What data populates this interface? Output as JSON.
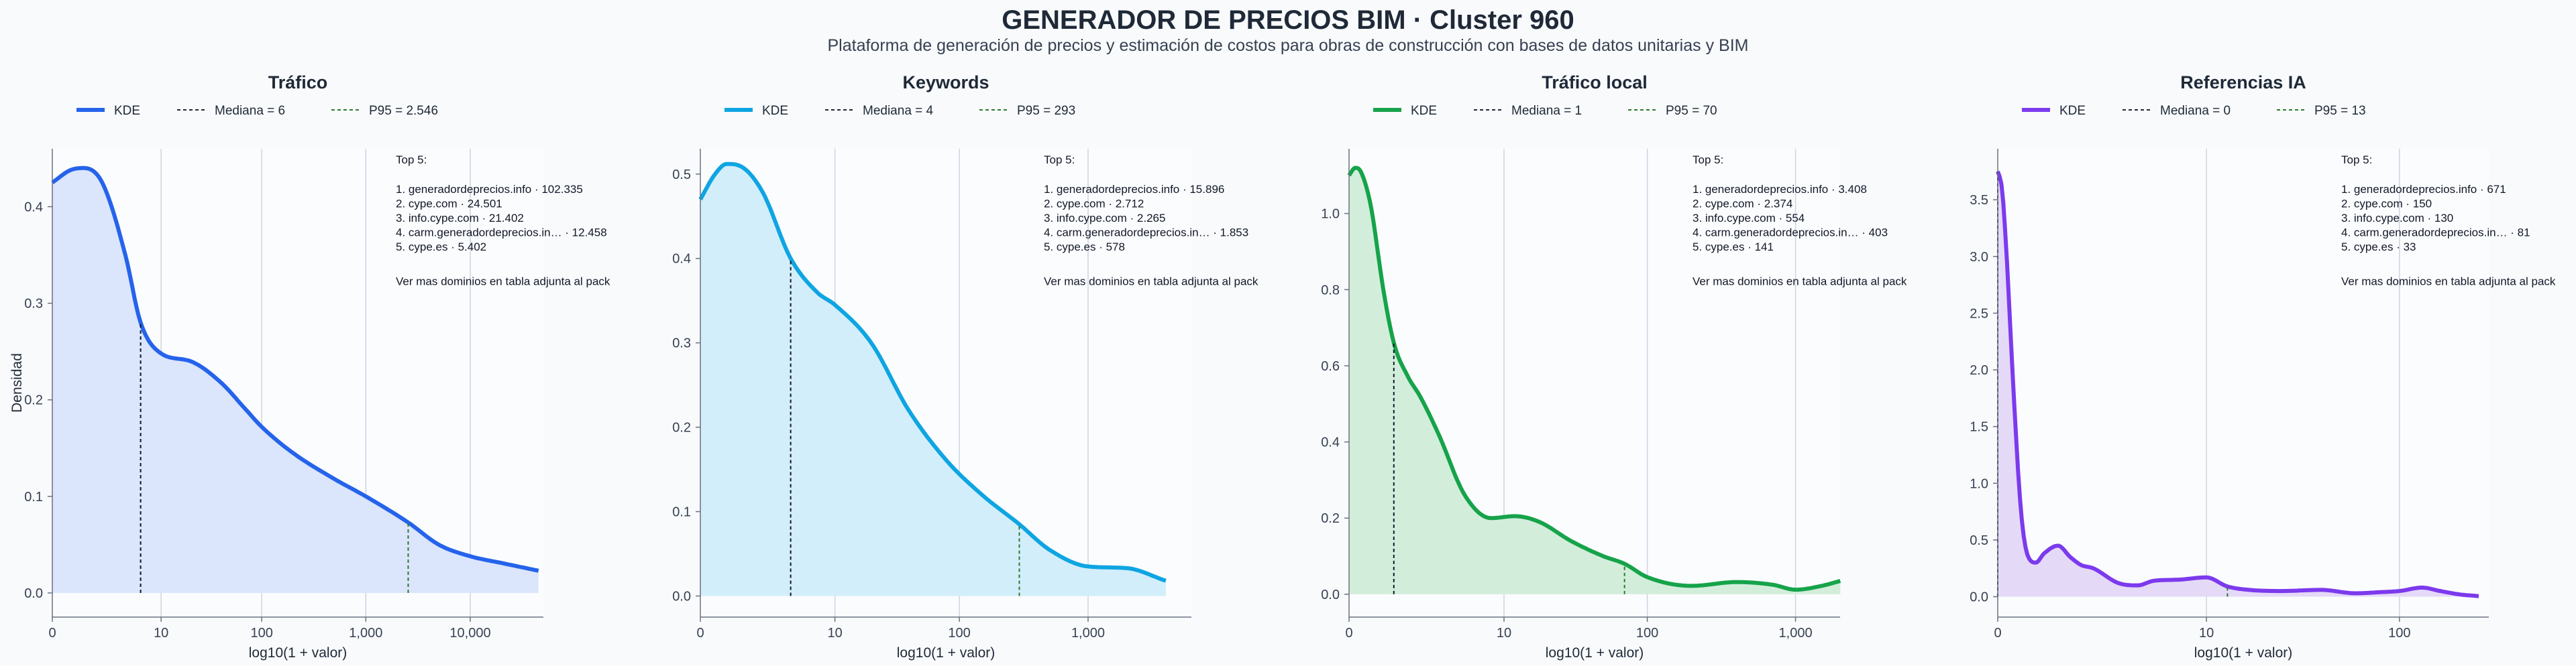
{
  "header": {
    "title": "GENERADOR DE PRECIOS BIM · Cluster 960",
    "subtitle": "Plataforma de generación de precios y estimación de costos para obras de construcción con bases de datos unitarias y BIM"
  },
  "chart_data": [
    {
      "type": "area",
      "title": "Tráfico",
      "xlabel": "log10(1 + valor)",
      "ylabel": "Densidad",
      "color": "#2563eb",
      "fill": "#dbe5fb",
      "x_scale": "log10(1+x)",
      "xlim": [
        0,
        4.7
      ],
      "ylim": [
        -0.025,
        0.46
      ],
      "x_ticks": [
        0,
        10,
        100,
        1000,
        10000
      ],
      "x_tick_labels": [
        "0",
        "10",
        "100",
        "1,000",
        "10,000"
      ],
      "y_ticks": [
        0.0,
        0.1,
        0.2,
        0.3,
        0.4
      ],
      "y_tick_labels": [
        "0.0",
        "0.1",
        "0.2",
        "0.3",
        "0.4"
      ],
      "grid": "vertical",
      "legend": {
        "placement": "top",
        "kde": "KDE",
        "median": "Mediana = 6",
        "p95": "P95 = 2.546"
      },
      "median": 6,
      "p95": 2546,
      "series": [
        {
          "name": "KDE",
          "x": [
            0,
            0.5,
            1,
            2,
            4,
            6,
            10,
            20,
            40,
            70,
            100,
            200,
            500,
            1000,
            2546,
            5000,
            10000,
            20000,
            45000
          ],
          "y": [
            0.425,
            0.438,
            0.44,
            0.425,
            0.35,
            0.28,
            0.248,
            0.24,
            0.218,
            0.19,
            0.172,
            0.145,
            0.118,
            0.1,
            0.073,
            0.05,
            0.038,
            0.031,
            0.023
          ]
        }
      ],
      "annotation": {
        "heading": "Top 5:",
        "items": [
          "1. generadordeprecios.info · 102.335",
          "2. cype.com · 24.501",
          "3. info.cype.com · 21.402",
          "4. carm.generadordeprecios.in… · 12.458",
          "5. cype.es · 5.402"
        ],
        "footer": "Ver mas dominios en tabla adjunta al pack"
      }
    },
    {
      "type": "area",
      "title": "Keywords",
      "xlabel": "log10(1 + valor)",
      "ylabel": "",
      "color": "#0ea5e2",
      "fill": "#d3eefb",
      "x_scale": "log10(1+x)",
      "xlim": [
        0,
        3.8
      ],
      "ylim": [
        -0.025,
        0.53
      ],
      "x_ticks": [
        0,
        10,
        100,
        1000
      ],
      "x_tick_labels": [
        "0",
        "10",
        "100",
        "1,000"
      ],
      "y_ticks": [
        0.0,
        0.1,
        0.2,
        0.3,
        0.4,
        0.5
      ],
      "y_tick_labels": [
        "0.0",
        "0.1",
        "0.2",
        "0.3",
        "0.4",
        "0.5"
      ],
      "grid": "vertical",
      "legend": {
        "placement": "top",
        "kde": "KDE",
        "median": "Mediana = 4",
        "p95": "P95 = 293"
      },
      "median": 4,
      "p95": 293,
      "series": [
        {
          "name": "KDE",
          "x": [
            0,
            0.3,
            0.6,
            1,
            2,
            4,
            7,
            10,
            20,
            40,
            80,
            150,
            293,
            500,
            1000,
            2000,
            4000
          ],
          "y": [
            0.47,
            0.5,
            0.512,
            0.51,
            0.48,
            0.4,
            0.36,
            0.345,
            0.3,
            0.22,
            0.16,
            0.12,
            0.085,
            0.055,
            0.035,
            0.033,
            0.018
          ]
        }
      ],
      "annotation": {
        "heading": "Top 5:",
        "items": [
          "1. generadordeprecios.info · 15.896",
          "2. cype.com · 2.712",
          "3. info.cype.com · 2.265",
          "4. carm.generadordeprecios.in… · 1.853",
          "5. cype.es · 578"
        ],
        "footer": "Ver mas dominios en tabla adjunta al pack"
      }
    },
    {
      "type": "area",
      "title": "Tráfico local",
      "xlabel": "log10(1 + valor)",
      "ylabel": "",
      "color": "#16a34a",
      "fill": "#d2eedb",
      "x_scale": "log10(1+x)",
      "xlim": [
        0,
        3.3
      ],
      "ylim": [
        -0.06,
        1.17
      ],
      "x_ticks": [
        0,
        10,
        100,
        1000
      ],
      "x_tick_labels": [
        "0",
        "10",
        "100",
        "1,000"
      ],
      "y_ticks": [
        0.0,
        0.2,
        0.4,
        0.6,
        0.8,
        1.0
      ],
      "y_tick_labels": [
        "0.0",
        "0.2",
        "0.4",
        "0.6",
        "0.8",
        "1.0"
      ],
      "grid": "vertical",
      "legend": {
        "placement": "top",
        "kde": "KDE",
        "median": "Mediana = 1",
        "p95": "P95 = 70"
      },
      "median": 1,
      "p95": 70,
      "series": [
        {
          "name": "KDE",
          "x": [
            0,
            0.1,
            0.2,
            0.4,
            0.7,
            1,
            1.5,
            2,
            3,
            5,
            8,
            12,
            18,
            30,
            50,
            70,
            100,
            200,
            400,
            700,
            1000,
            1500,
            2000
          ],
          "y": [
            1.1,
            1.12,
            1.11,
            1.02,
            0.8,
            0.66,
            0.57,
            0.52,
            0.42,
            0.26,
            0.2,
            0.205,
            0.19,
            0.14,
            0.1,
            0.08,
            0.045,
            0.022,
            0.032,
            0.025,
            0.012,
            0.022,
            0.035
          ]
        }
      ],
      "annotation": {
        "heading": "Top 5:",
        "items": [
          "1. generadordeprecios.info · 3.408",
          "2. cype.com · 2.374",
          "3. info.cype.com · 554",
          "4. carm.generadordeprecios.in… · 403",
          "5. cype.es · 141"
        ],
        "footer": "Ver mas dominios en tabla adjunta al pack"
      }
    },
    {
      "type": "area",
      "title": "Referencias IA",
      "xlabel": "log10(1 + valor)",
      "ylabel": "",
      "color": "#7c3aed",
      "fill": "#e5d9f8",
      "x_scale": "log10(1+x)",
      "xlim": [
        0,
        2.45
      ],
      "ylim": [
        -0.18,
        3.95
      ],
      "x_ticks": [
        0,
        10,
        100
      ],
      "x_tick_labels": [
        "0",
        "10",
        "100"
      ],
      "y_ticks": [
        0.0,
        0.5,
        1.0,
        1.5,
        2.0,
        2.5,
        3.0,
        3.5
      ],
      "y_tick_labels": [
        "0.0",
        "0.5",
        "1.0",
        "1.5",
        "2.0",
        "2.5",
        "3.0",
        "3.5"
      ],
      "grid": "vertical",
      "legend": {
        "placement": "top",
        "kde": "KDE",
        "median": "Mediana = 0",
        "p95": "P95 = 13"
      },
      "median": 0,
      "p95": 13,
      "series": [
        {
          "name": "KDE",
          "x": [
            0,
            0.05,
            0.1,
            0.2,
            0.3,
            0.4,
            0.55,
            0.7,
            1,
            1.3,
            1.6,
            2,
            3,
            4,
            5,
            7,
            10,
            13,
            17,
            25,
            40,
            60,
            80,
            100,
            130,
            160,
            200,
            250
          ],
          "y": [
            3.75,
            3.6,
            3.1,
            1.8,
            0.8,
            0.38,
            0.3,
            0.38,
            0.45,
            0.35,
            0.28,
            0.25,
            0.12,
            0.1,
            0.14,
            0.15,
            0.17,
            0.09,
            0.06,
            0.05,
            0.06,
            0.03,
            0.04,
            0.05,
            0.08,
            0.05,
            0.02,
            0.005
          ]
        }
      ],
      "annotation": {
        "heading": "Top 5:",
        "items": [
          "1. generadordeprecios.info · 671",
          "2. cype.com · 150",
          "3. info.cype.com · 130",
          "4. carm.generadordeprecios.in… · 81",
          "5. cype.es · 33"
        ],
        "footer": "Ver mas dominios en tabla adjunta al pack"
      }
    }
  ]
}
